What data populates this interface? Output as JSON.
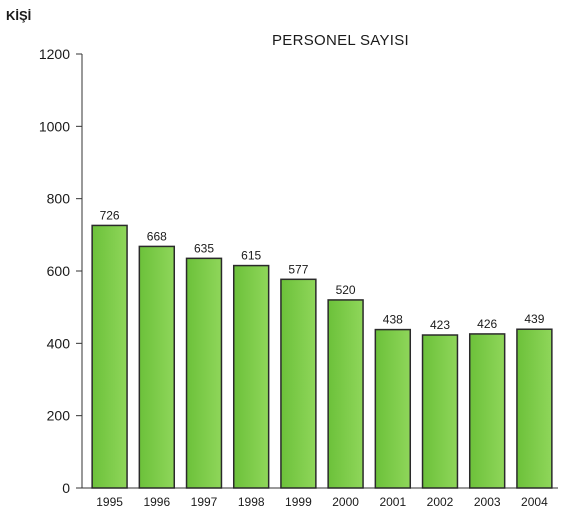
{
  "chart_data": {
    "type": "bar",
    "title": "PERSONEL SAYISI",
    "ylabel": "KİŞİ",
    "xlabel": "",
    "categories": [
      "1995",
      "1996",
      "1997",
      "1998",
      "1999",
      "2000",
      "2001",
      "2002",
      "2003",
      "2004"
    ],
    "values": [
      726,
      668,
      635,
      615,
      577,
      520,
      438,
      423,
      426,
      439
    ],
    "ylim": [
      0,
      1200
    ],
    "yticks": [
      0,
      200,
      400,
      600,
      800,
      1000,
      1200
    ],
    "grid": false,
    "legend": "none",
    "bar_color": "#6cc13a",
    "bar_color_light": "#8fd65a",
    "bar_edge_color": "#2a2a2a"
  }
}
